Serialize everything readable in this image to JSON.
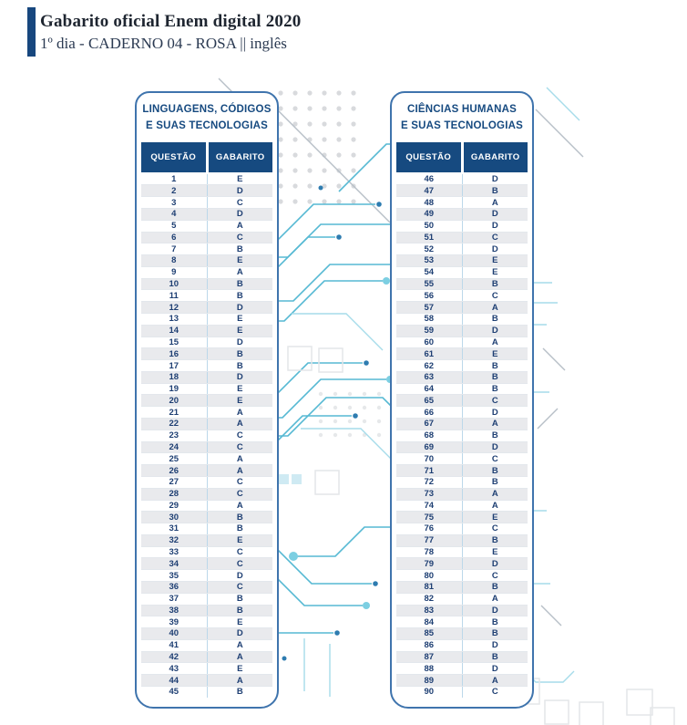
{
  "page": {
    "title": "Gabarito oficial Enem digital 2020",
    "subtitle": "1º dia - CADERNO 04 - ROSA || inglês"
  },
  "colors": {
    "accent_bar": "#17477e",
    "header_blue": "#164a80",
    "card_border": "#3f74ad",
    "row_alt": "#e9eaed",
    "circuit_teal": "#56b9d3"
  },
  "tables": [
    {
      "title_line1": "LINGUAGENS, CÓDIGOS",
      "title_line2": "E SUAS TECNOLOGIAS",
      "columns": [
        "QUESTÃO",
        "GABARITO"
      ],
      "rows": [
        [
          1,
          "E"
        ],
        [
          2,
          "D"
        ],
        [
          3,
          "C"
        ],
        [
          4,
          "D"
        ],
        [
          5,
          "A"
        ],
        [
          6,
          "C"
        ],
        [
          7,
          "B"
        ],
        [
          8,
          "E"
        ],
        [
          9,
          "A"
        ],
        [
          10,
          "B"
        ],
        [
          11,
          "B"
        ],
        [
          12,
          "D"
        ],
        [
          13,
          "E"
        ],
        [
          14,
          "E"
        ],
        [
          15,
          "D"
        ],
        [
          16,
          "B"
        ],
        [
          17,
          "B"
        ],
        [
          18,
          "D"
        ],
        [
          19,
          "E"
        ],
        [
          20,
          "E"
        ],
        [
          21,
          "A"
        ],
        [
          22,
          "A"
        ],
        [
          23,
          "C"
        ],
        [
          24,
          "C"
        ],
        [
          25,
          "A"
        ],
        [
          26,
          "A"
        ],
        [
          27,
          "C"
        ],
        [
          28,
          "C"
        ],
        [
          29,
          "A"
        ],
        [
          30,
          "B"
        ],
        [
          31,
          "B"
        ],
        [
          32,
          "E"
        ],
        [
          33,
          "C"
        ],
        [
          34,
          "C"
        ],
        [
          35,
          "D"
        ],
        [
          36,
          "C"
        ],
        [
          37,
          "B"
        ],
        [
          38,
          "B"
        ],
        [
          39,
          "E"
        ],
        [
          40,
          "D"
        ],
        [
          41,
          "A"
        ],
        [
          42,
          "A"
        ],
        [
          43,
          "E"
        ],
        [
          44,
          "A"
        ],
        [
          45,
          "B"
        ]
      ]
    },
    {
      "title_line1": "CIÊNCIAS HUMANAS",
      "title_line2": "E SUAS TECNOLOGIAS",
      "columns": [
        "QUESTÃO",
        "GABARITO"
      ],
      "rows": [
        [
          46,
          "D"
        ],
        [
          47,
          "B"
        ],
        [
          48,
          "A"
        ],
        [
          49,
          "D"
        ],
        [
          50,
          "D"
        ],
        [
          51,
          "C"
        ],
        [
          52,
          "D"
        ],
        [
          53,
          "E"
        ],
        [
          54,
          "E"
        ],
        [
          55,
          "B"
        ],
        [
          56,
          "C"
        ],
        [
          57,
          "A"
        ],
        [
          58,
          "B"
        ],
        [
          59,
          "D"
        ],
        [
          60,
          "A"
        ],
        [
          61,
          "E"
        ],
        [
          62,
          "B"
        ],
        [
          63,
          "B"
        ],
        [
          64,
          "B"
        ],
        [
          65,
          "C"
        ],
        [
          66,
          "D"
        ],
        [
          67,
          "A"
        ],
        [
          68,
          "B"
        ],
        [
          69,
          "D"
        ],
        [
          70,
          "C"
        ],
        [
          71,
          "B"
        ],
        [
          72,
          "B"
        ],
        [
          73,
          "A"
        ],
        [
          74,
          "A"
        ],
        [
          75,
          "E"
        ],
        [
          76,
          "C"
        ],
        [
          77,
          "B"
        ],
        [
          78,
          "E"
        ],
        [
          79,
          "D"
        ],
        [
          80,
          "C"
        ],
        [
          81,
          "B"
        ],
        [
          82,
          "A"
        ],
        [
          83,
          "D"
        ],
        [
          84,
          "B"
        ],
        [
          85,
          "B"
        ],
        [
          86,
          "D"
        ],
        [
          87,
          "B"
        ],
        [
          88,
          "D"
        ],
        [
          89,
          "A"
        ],
        [
          90,
          "C"
        ]
      ]
    }
  ]
}
